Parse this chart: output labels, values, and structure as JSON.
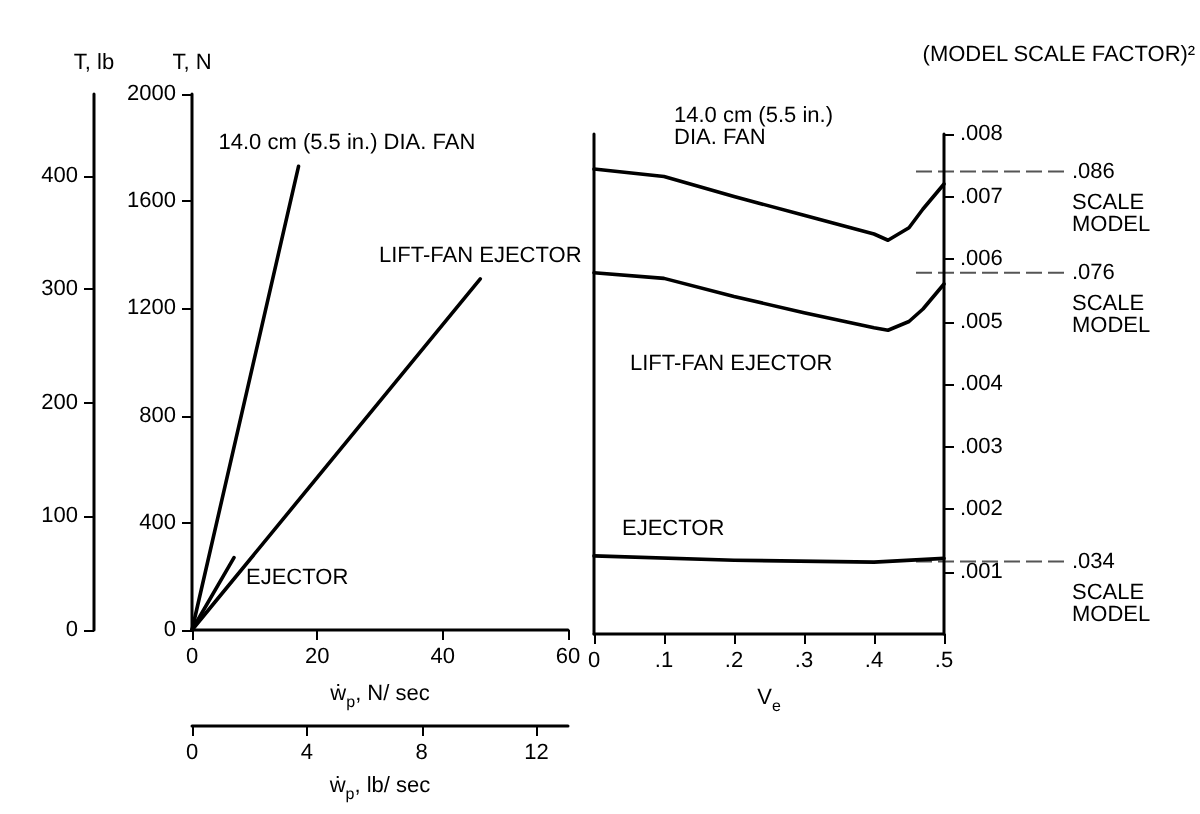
{
  "chart_data": [
    {
      "type": "line",
      "xlabel": "ẇ$_{p}$, N/ sec",
      "ylabel": "T, N",
      "y2label": "T, lb",
      "x2label": "ẇ$_{p}$, lb/ sec",
      "xlim": [
        0,
        60
      ],
      "xticks": [
        0,
        20,
        40,
        60
      ],
      "ylim": [
        0,
        2000
      ],
      "yticks": [
        0,
        400,
        800,
        1200,
        1600,
        2000
      ],
      "y2lim": [
        0,
        472
      ],
      "y2ticks": [
        0,
        100,
        200,
        300,
        400
      ],
      "x2lim": [
        0,
        13.1
      ],
      "x2ticks": [
        0,
        4,
        8,
        12
      ],
      "marker": "none",
      "line_style": "solid",
      "series": [
        {
          "name": "14.0 cm (5.5 in.) DIA. FAN",
          "color": "#000000",
          "x": [
            0,
            17
          ],
          "values": [
            0,
            1730
          ]
        },
        {
          "name": "LIFT-FAN EJECTOR",
          "color": "#000000",
          "x": [
            0,
            46
          ],
          "values": [
            0,
            1310
          ]
        },
        {
          "name": "EJECTOR",
          "color": "#000000",
          "x": [
            0,
            6.7
          ],
          "values": [
            0,
            270
          ]
        }
      ]
    },
    {
      "type": "line",
      "xlabel": "V$_{e}$",
      "xlim": [
        0,
        0.5
      ],
      "xticks": [
        0,
        {
          "value": 0.1,
          "label": ".1"
        },
        {
          "value": 0.2,
          "label": ".2"
        },
        {
          "value": 0.3,
          "label": ".3"
        },
        {
          "value": 0.4,
          "label": ".4"
        },
        {
          "value": 0.5,
          "label": ".5"
        }
      ],
      "ylim": [
        0,
        0.008
      ],
      "yticks": [
        {
          "value": 0.001,
          "label": ".001"
        },
        {
          "value": 0.002,
          "label": ".002"
        },
        {
          "value": 0.003,
          "label": ".003"
        },
        {
          "value": 0.004,
          "label": ".004"
        },
        {
          "value": 0.005,
          "label": ".005"
        },
        {
          "value": 0.006,
          "label": ".006"
        },
        {
          "value": 0.007,
          "label": ".007"
        },
        {
          "value": 0.008,
          "label": ".008"
        }
      ],
      "marker": "none",
      "line_style": "solid",
      "ref_lines": [
        {
          "axis": "y",
          "value": 0.0074,
          "line_style": "dashed"
        },
        {
          "axis": "y",
          "value": 0.00578,
          "line_style": "dashed"
        },
        {
          "axis": "y",
          "value": 0.00116,
          "line_style": "dashed"
        }
      ],
      "annotations": [
        "(MODEL SCALE FACTOR)²",
        ".086",
        "SCALE MODEL",
        ".076",
        "SCALE MODEL",
        ".034",
        "SCALE MODEL"
      ],
      "series": [
        {
          "name": "14.0 cm (5.5 in.) DIA. FAN",
          "color": "#000000",
          "x": [
            0,
            0.1,
            0.2,
            0.3,
            0.4,
            0.42,
            0.45,
            0.47,
            0.5
          ],
          "values": [
            0.00744,
            0.00732,
            0.007,
            0.0067,
            0.0064,
            0.0063,
            0.0065,
            0.0068,
            0.0072
          ]
        },
        {
          "name": "LIFT-FAN EJECTOR",
          "color": "#000000",
          "x": [
            0,
            0.1,
            0.2,
            0.3,
            0.4,
            0.42,
            0.45,
            0.47,
            0.5
          ],
          "values": [
            0.00578,
            0.00569,
            0.0054,
            0.00514,
            0.0049,
            0.00486,
            0.005,
            0.0052,
            0.0056
          ]
        },
        {
          "name": "EJECTOR",
          "color": "#000000",
          "x": [
            0,
            0.2,
            0.4,
            0.5
          ],
          "values": [
            0.00125,
            0.00118,
            0.00115,
            0.00121
          ]
        }
      ]
    }
  ]
}
